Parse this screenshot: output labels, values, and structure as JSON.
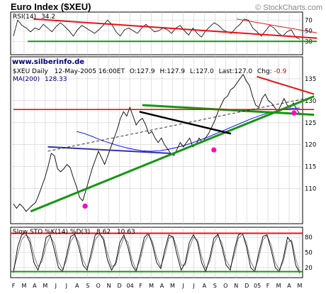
{
  "header": {
    "title": "Euro Index ($XEU)",
    "credit": "© StockCharts.com"
  },
  "watermark": "www.silberinfo.de",
  "colors": {
    "price": "#000000",
    "ma": "#0000ff",
    "trend_green": "#119911",
    "trend_red": "#ee1111",
    "trend_blue": "#3333aa",
    "marker": "#ff00cc",
    "grid": "#cfcfcf"
  },
  "chart_data": [
    {
      "type": "line",
      "panel": "rsi",
      "label": "RSI(14)",
      "value_label": "34.2",
      "ylim": [
        5,
        85
      ],
      "yticks": [
        30,
        50,
        70
      ],
      "reference_lines": [
        30,
        70
      ],
      "series": [
        {
          "values": [
            40,
            70,
            60,
            55,
            48,
            55,
            52,
            62,
            55,
            48,
            58,
            65,
            58,
            50,
            40,
            52,
            60,
            55,
            50,
            45,
            52,
            60,
            70,
            62,
            48,
            40,
            52,
            55,
            50,
            45,
            55,
            62,
            55,
            48,
            50,
            55,
            52,
            45,
            55,
            60,
            50,
            42,
            55,
            45,
            38,
            50,
            58,
            65,
            60,
            52,
            48,
            45,
            55,
            62,
            72,
            70,
            55,
            48,
            40,
            50,
            60,
            55,
            45,
            40,
            48,
            52,
            38,
            34
          ]
        }
      ]
    },
    {
      "type": "line",
      "panel": "price",
      "label": "$XEU Daily",
      "date": "12-May-2005 16:00ET",
      "ohlc": {
        "open": "O:127.9",
        "high": "H:127.9",
        "low": "L:127.0",
        "last": "Last:127.0",
        "change_label": "Chg:",
        "change": "-0.9"
      },
      "ma_label": "MA(200)",
      "ma_value": "128.33",
      "ylim": [
        102,
        140
      ],
      "yticks": [
        110,
        115,
        120,
        125,
        130,
        135
      ],
      "series": [
        {
          "values": [
            106.5,
            105.5,
            106.5,
            105.8,
            104.8,
            105.5,
            106.2,
            106.8,
            108.5,
            110.5,
            112.5,
            115.0,
            118.0,
            117.5,
            114.5,
            113.8,
            114.5,
            115.5,
            114.8,
            112.5,
            110.5,
            108.0,
            107.2,
            109.5,
            112.0,
            114.5,
            116.5,
            118.5,
            117.0,
            115.5,
            117.5,
            119.5,
            121.5,
            123.5,
            126.0,
            127.5,
            126.5,
            128.5,
            126.5,
            124.5,
            125.5,
            126.0,
            124.5,
            122.5,
            123.0,
            121.5,
            120.5,
            121.5,
            120.0,
            119.0,
            118.0,
            117.5,
            119.0,
            120.5,
            119.5,
            120.5,
            121.5,
            119.5,
            120.0,
            121.5,
            120.5,
            121.5,
            122.5,
            124.0,
            125.5,
            127.5,
            129.0,
            130.5,
            131.0,
            132.5,
            133.0,
            134.0,
            135.0,
            136.0,
            134.5,
            133.5,
            131.0,
            129.0,
            128.5,
            130.5,
            131.5,
            130.0,
            129.5,
            128.5,
            127.5,
            129.0,
            130.5,
            129.0,
            128.5,
            129.5,
            128.0,
            127.0
          ]
        },
        {
          "name": "MA(200)",
          "values": [
            123.0,
            122.5,
            121.8,
            121.0,
            120.4,
            119.8,
            119.3,
            118.9,
            118.6,
            118.5,
            118.6,
            118.9,
            119.3,
            119.8,
            120.4,
            121.1,
            121.8,
            122.6,
            123.4,
            124.2,
            125.0,
            125.8,
            126.5,
            127.1,
            127.6,
            128.0,
            128.3,
            128.33
          ]
        }
      ],
      "trendlines": [
        {
          "color": "green",
          "from": [
            104.8
          ],
          "to": [
            131.0
          ]
        },
        {
          "color": "green",
          "from": [
            129.0
          ],
          "to": [
            126.8
          ]
        },
        {
          "color": "red",
          "from": [
            128.0
          ],
          "to": [
            128.0
          ]
        },
        {
          "color": "red",
          "from": [
            135.5
          ],
          "to": [
            131.5
          ]
        },
        {
          "color": "black",
          "from": [
            127.5
          ],
          "to": [
            122.5
          ]
        },
        {
          "color": "blue",
          "from": [
            119.5
          ],
          "to": [
            118.0
          ]
        },
        {
          "color": "dashed",
          "from": [
            118.5
          ],
          "to": [
            130.5
          ]
        }
      ],
      "markers": [
        106.0,
        118.8,
        127.2
      ]
    },
    {
      "type": "line",
      "panel": "stochastic",
      "label": "Slow STO %K(14) %D(3)",
      "values_label": [
        "8.62",
        "10.63"
      ],
      "ylim": [
        0,
        100
      ],
      "yticks": [
        20,
        50,
        80
      ],
      "reference_lines": [
        20,
        80
      ],
      "series": [
        {
          "name": "%K",
          "values": [
            10,
            60,
            85,
            88,
            70,
            30,
            15,
            40,
            80,
            85,
            55,
            20,
            12,
            45,
            82,
            86,
            60,
            25,
            15,
            50,
            85,
            88,
            75,
            35,
            15,
            30,
            70,
            85,
            60,
            25,
            12,
            45,
            80,
            88,
            65,
            30,
            18,
            55,
            85,
            80,
            45,
            15,
            30,
            70,
            85,
            70,
            30,
            12,
            40,
            78,
            86,
            60,
            25,
            15,
            55,
            85,
            88,
            60,
            20,
            12,
            50,
            82,
            85,
            55,
            20,
            12,
            40,
            80,
            70,
            25,
            9
          ]
        },
        {
          "name": "%D",
          "values": [
            15,
            45,
            75,
            85,
            78,
            45,
            22,
            32,
            65,
            82,
            68,
            32,
            16,
            35,
            72,
            84,
            70,
            35,
            20,
            40,
            75,
            86,
            80,
            48,
            22,
            25,
            58,
            80,
            70,
            35,
            16,
            35,
            70,
            85,
            72,
            40,
            22,
            45,
            78,
            82,
            58,
            25,
            25,
            58,
            80,
            75,
            42,
            18,
            32,
            68,
            84,
            68,
            35,
            20,
            45,
            78,
            86,
            68,
            32,
            16,
            40,
            75,
            84,
            65,
            30,
            16,
            32,
            70,
            75,
            38,
            11
          ]
        }
      ]
    }
  ],
  "xaxis": {
    "months": [
      "F",
      "M",
      "A",
      "M",
      "J",
      "J",
      "A",
      "S",
      "O",
      "N",
      "D",
      "04",
      "F",
      "M",
      "A",
      "M",
      "J",
      "J",
      "A",
      "S",
      "O",
      "N",
      "D",
      "05",
      "F",
      "M",
      "A",
      "M"
    ]
  }
}
